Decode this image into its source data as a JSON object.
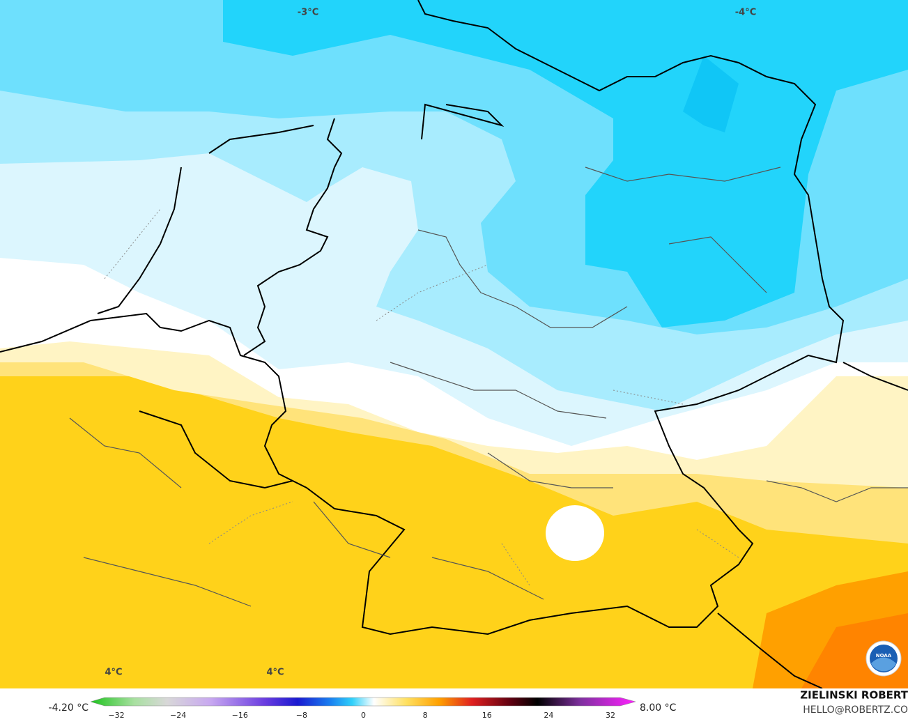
{
  "map": {
    "labels": [
      "-3°C",
      "-4°C",
      "4°C",
      "4°C"
    ]
  },
  "legend": {
    "min_label": "-4.20 °C",
    "max_label": "8.00 °C",
    "ticks": [
      "−32",
      "−24",
      "−16",
      "−8",
      "0",
      "8",
      "16",
      "24",
      "32"
    ]
  },
  "credit": {
    "name": "ZIELINSKI ROBERT",
    "email": "HELLO@ROBERTZ.CO",
    "logo": "NOAA"
  }
}
